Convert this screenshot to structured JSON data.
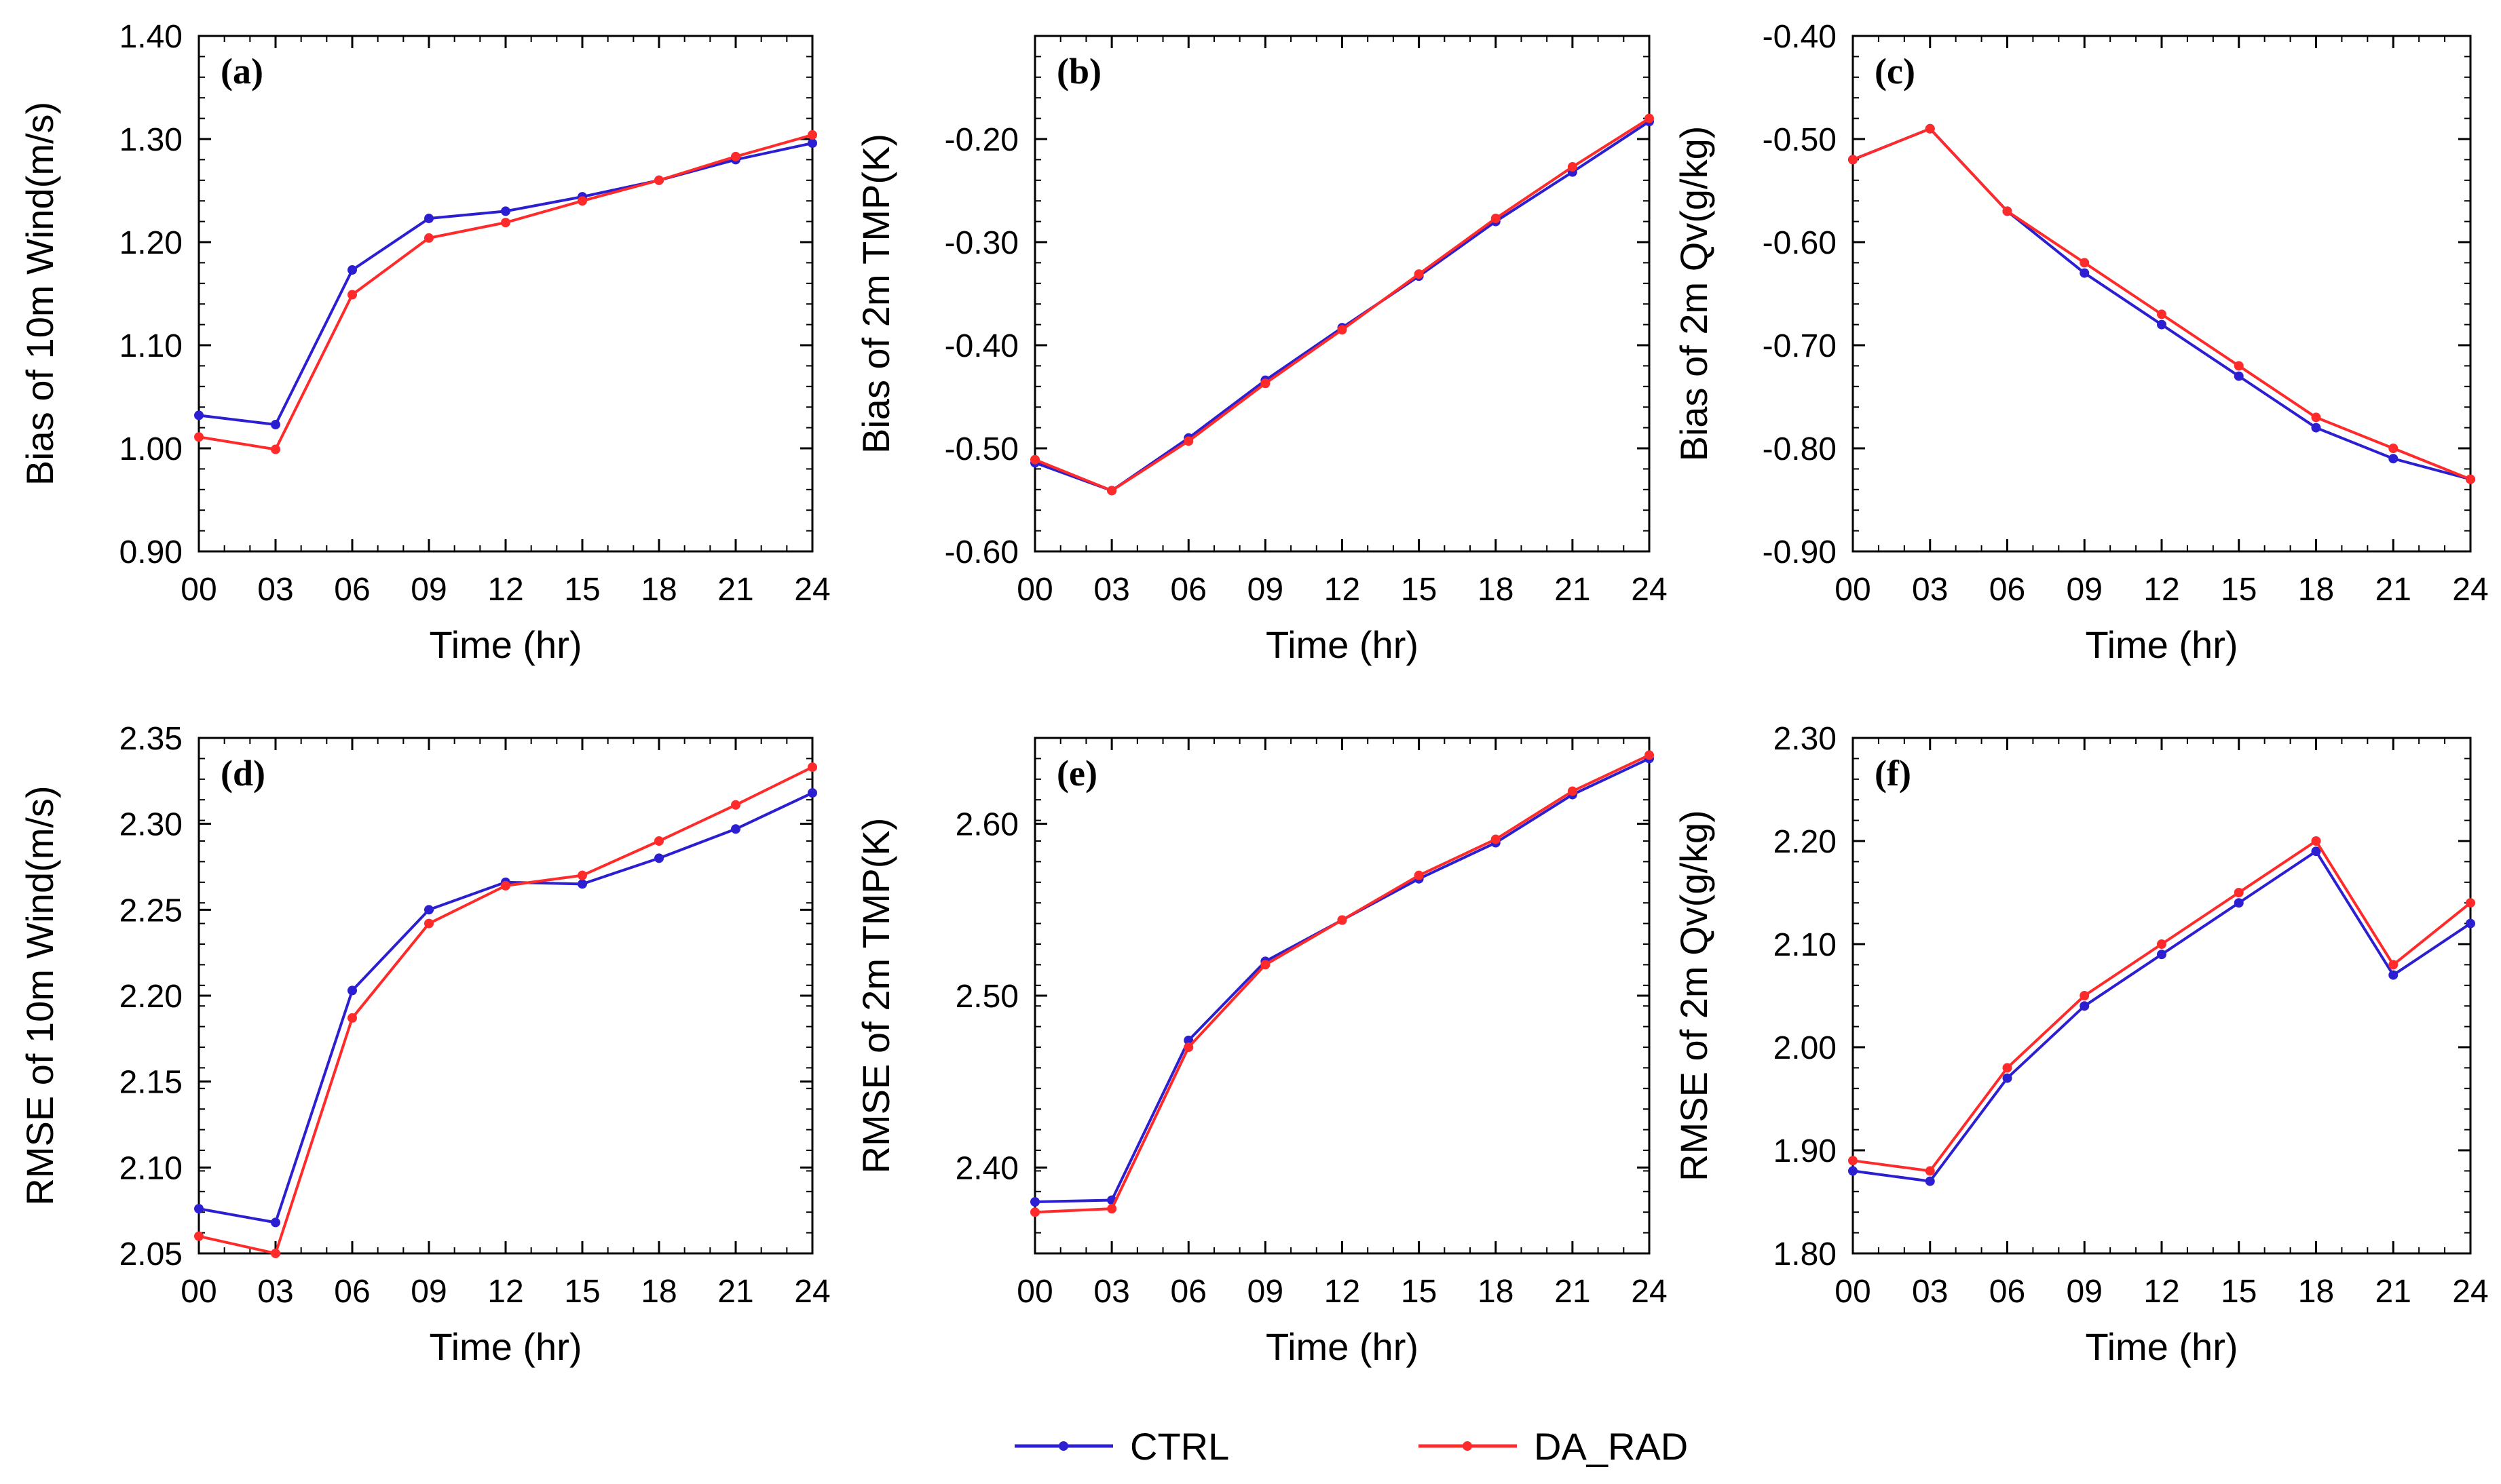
{
  "colors": {
    "ctrl": "#2b1fd1",
    "da_rad": "#ff2a2a"
  },
  "legend": [
    {
      "name": "CTRL",
      "color": "#2b1fd1"
    },
    {
      "name": "DA_RAD",
      "color": "#ff2a2a"
    }
  ],
  "chart_data": [
    {
      "type": "line",
      "label": "(a)",
      "title": "",
      "xlabel": "Time (hr)",
      "ylabel": "Bias of 10m Wind(m/s)",
      "categories": [
        "00",
        "03",
        "06",
        "09",
        "12",
        "15",
        "18",
        "21",
        "24"
      ],
      "ylim": [
        0.9,
        1.4
      ],
      "yticks": [
        "0.90",
        "1.00",
        "1.10",
        "1.20",
        "1.30",
        "1.40"
      ],
      "series": [
        {
          "name": "CTRL",
          "values": [
            1.032,
            1.023,
            1.173,
            1.223,
            1.23,
            1.244,
            1.26,
            1.28,
            1.296
          ]
        },
        {
          "name": "DA_RAD",
          "values": [
            1.011,
            0.999,
            1.149,
            1.204,
            1.219,
            1.24,
            1.26,
            1.283,
            1.304
          ]
        }
      ]
    },
    {
      "type": "line",
      "label": "(b)",
      "title": "",
      "xlabel": "Time (hr)",
      "ylabel": "Bias of 2m TMP(K)",
      "categories": [
        "00",
        "03",
        "06",
        "09",
        "12",
        "15",
        "18",
        "21",
        "24"
      ],
      "ylim": [
        -0.6,
        -0.1
      ],
      "yticks": [
        "-0.60",
        "-0.50",
        "-0.40",
        "-0.30",
        "-0.20",
        ""
      ],
      "series": [
        {
          "name": "CTRL",
          "values": [
            -0.514,
            -0.541,
            -0.49,
            -0.434,
            -0.383,
            -0.333,
            -0.28,
            -0.232,
            -0.183
          ]
        },
        {
          "name": "DA_RAD",
          "values": [
            -0.511,
            -0.541,
            -0.493,
            -0.437,
            -0.385,
            -0.331,
            -0.277,
            -0.227,
            -0.18
          ]
        }
      ]
    },
    {
      "type": "line",
      "label": "(c)",
      "title": "",
      "xlabel": "Time (hr)",
      "ylabel": "Bias of 2m Qv(g/kg)",
      "categories": [
        "00",
        "03",
        "06",
        "09",
        "12",
        "15",
        "18",
        "21",
        "24"
      ],
      "ylim": [
        -0.9,
        -0.4
      ],
      "yticks": [
        "-0.90",
        "-0.80",
        "-0.70",
        "-0.60",
        "-0.50",
        "-0.40"
      ],
      "series": [
        {
          "name": "CTRL",
          "values": [
            -0.52,
            -0.49,
            -0.57,
            -0.63,
            -0.68,
            -0.73,
            -0.78,
            -0.81,
            -0.83
          ]
        },
        {
          "name": "DA_RAD",
          "values": [
            -0.52,
            -0.49,
            -0.57,
            -0.62,
            -0.67,
            -0.72,
            -0.77,
            -0.8,
            -0.83
          ]
        }
      ]
    },
    {
      "type": "line",
      "label": "(d)",
      "title": "",
      "xlabel": "Time (hr)",
      "ylabel": "RMSE of 10m Wind(m/s)",
      "categories": [
        "00",
        "03",
        "06",
        "09",
        "12",
        "15",
        "18",
        "21",
        "24"
      ],
      "ylim": [
        2.05,
        2.35
      ],
      "yticks": [
        "2.05",
        "2.10",
        "2.15",
        "2.20",
        "2.25",
        "2.30",
        "2.35"
      ],
      "series": [
        {
          "name": "CTRL",
          "values": [
            2.076,
            2.068,
            2.203,
            2.25,
            2.266,
            2.265,
            2.28,
            2.297,
            2.318
          ]
        },
        {
          "name": "DA_RAD",
          "values": [
            2.06,
            2.05,
            2.187,
            2.242,
            2.264,
            2.27,
            2.29,
            2.311,
            2.333
          ]
        }
      ]
    },
    {
      "type": "line",
      "label": "(e)",
      "title": "",
      "xlabel": "Time (hr)",
      "ylabel": "RMSE of 2m TMP(K)",
      "categories": [
        "00",
        "03",
        "06",
        "09",
        "12",
        "15",
        "18",
        "21",
        "24"
      ],
      "ylim": [
        2.35,
        2.65
      ],
      "yticks": [
        "2.40",
        "2.50",
        "2.60"
      ],
      "ytick_values": [
        2.4,
        2.5,
        2.6
      ],
      "series": [
        {
          "name": "CTRL",
          "values": [
            2.38,
            2.381,
            2.474,
            2.52,
            2.544,
            2.568,
            2.589,
            2.617,
            2.638
          ]
        },
        {
          "name": "DA_RAD",
          "values": [
            2.374,
            2.376,
            2.47,
            2.518,
            2.544,
            2.57,
            2.591,
            2.619,
            2.64
          ]
        }
      ]
    },
    {
      "type": "line",
      "label": "(f)",
      "title": "",
      "xlabel": "Time (hr)",
      "ylabel": "RMSE of 2m Qv(g/kg)",
      "categories": [
        "00",
        "03",
        "06",
        "09",
        "12",
        "15",
        "18",
        "21",
        "24"
      ],
      "ylim": [
        1.8,
        2.3
      ],
      "yticks": [
        "1.80",
        "1.90",
        "2.00",
        "2.10",
        "2.20",
        "2.30"
      ],
      "series": [
        {
          "name": "CTRL",
          "values": [
            1.88,
            1.87,
            1.97,
            2.04,
            2.09,
            2.14,
            2.19,
            2.07,
            2.12
          ]
        },
        {
          "name": "DA_RAD",
          "values": [
            1.89,
            1.88,
            1.98,
            2.05,
            2.1,
            2.15,
            2.2,
            2.08,
            2.14
          ]
        }
      ]
    }
  ]
}
